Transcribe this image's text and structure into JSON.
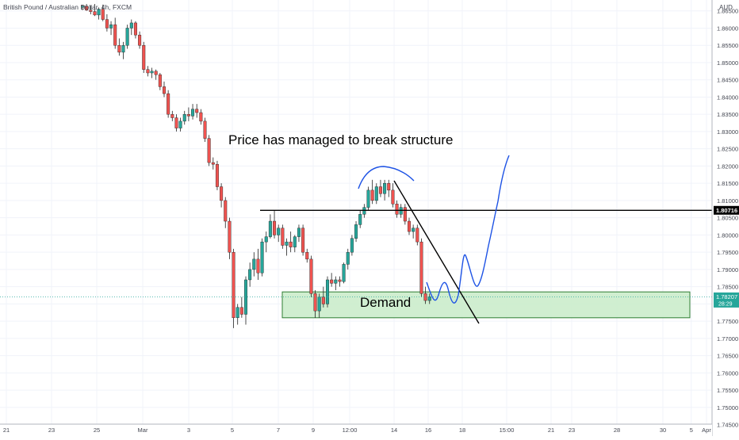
{
  "header": {
    "symbol_title": "British Pound / Australian Dollar, 4h, FXCM"
  },
  "colors": {
    "up": "#26a69a",
    "down": "#ef5350",
    "grid": "#f0f3fa",
    "axis_text": "#434651",
    "drawing_black": "#000000",
    "drawing_blue": "#1e53e5",
    "demand_fill": "#c8ebc8",
    "demand_stroke": "#2e7d32"
  },
  "price_axis": {
    "currency": "AUD",
    "ticks": [
      "1.86500",
      "1.86000",
      "1.85500",
      "1.85000",
      "1.84500",
      "1.84000",
      "1.83500",
      "1.83000",
      "1.82500",
      "1.82000",
      "1.81500",
      "1.81000",
      "1.80500",
      "1.80000",
      "1.79500",
      "1.79000",
      "1.78500",
      "1.78000",
      "1.77500",
      "1.77000",
      "1.76500",
      "1.76000",
      "1.75500",
      "1.75000",
      "1.74500"
    ],
    "level_label": "1.80716",
    "current_price": "1.78207",
    "countdown": "28:29"
  },
  "time_axis": {
    "labels": [
      "21",
      "23",
      "25",
      "Mar",
      "3",
      "5",
      "7",
      "9",
      "12:00",
      "14",
      "16",
      "18",
      "15:00",
      "21",
      "23",
      "28",
      "30",
      "Apr",
      "5"
    ]
  },
  "annotations": {
    "structure_text": "Price has managed to break structure",
    "demand_text": "Demand"
  },
  "chart_data": {
    "type": "candlestick",
    "title": "British Pound / Australian Dollar, 4h, FXCM",
    "y_unit": "AUD",
    "ylim": [
      1.744,
      1.867
    ],
    "grid": true,
    "horizontal_level": 1.80716,
    "last_price": 1.78207,
    "demand_zone": [
      1.776,
      1.7835
    ],
    "candles": [
      {
        "o": 1.866,
        "h": 1.8668,
        "l": 1.8652,
        "c": 1.8664
      },
      {
        "o": 1.8664,
        "h": 1.867,
        "l": 1.865,
        "c": 1.8652
      },
      {
        "o": 1.8652,
        "h": 1.8665,
        "l": 1.864,
        "c": 1.8648
      },
      {
        "o": 1.8648,
        "h": 1.867,
        "l": 1.8635,
        "c": 1.8638
      },
      {
        "o": 1.8638,
        "h": 1.866,
        "l": 1.8625,
        "c": 1.8655
      },
      {
        "o": 1.8655,
        "h": 1.8668,
        "l": 1.862,
        "c": 1.8625
      },
      {
        "o": 1.8625,
        "h": 1.864,
        "l": 1.859,
        "c": 1.86
      },
      {
        "o": 1.86,
        "h": 1.862,
        "l": 1.858,
        "c": 1.861
      },
      {
        "o": 1.861,
        "h": 1.863,
        "l": 1.854,
        "c": 1.855
      },
      {
        "o": 1.855,
        "h": 1.857,
        "l": 1.852,
        "c": 1.853
      },
      {
        "o": 1.853,
        "h": 1.856,
        "l": 1.851,
        "c": 1.855
      },
      {
        "o": 1.855,
        "h": 1.861,
        "l": 1.854,
        "c": 1.86
      },
      {
        "o": 1.86,
        "h": 1.8625,
        "l": 1.858,
        "c": 1.8615
      },
      {
        "o": 1.8615,
        "h": 1.862,
        "l": 1.857,
        "c": 1.858
      },
      {
        "o": 1.858,
        "h": 1.859,
        "l": 1.854,
        "c": 1.855
      },
      {
        "o": 1.855,
        "h": 1.856,
        "l": 1.847,
        "c": 1.848
      },
      {
        "o": 1.848,
        "h": 1.849,
        "l": 1.846,
        "c": 1.847
      },
      {
        "o": 1.847,
        "h": 1.8485,
        "l": 1.8455,
        "c": 1.8475
      },
      {
        "o": 1.8475,
        "h": 1.848,
        "l": 1.845,
        "c": 1.8465
      },
      {
        "o": 1.8465,
        "h": 1.847,
        "l": 1.842,
        "c": 1.843
      },
      {
        "o": 1.843,
        "h": 1.8445,
        "l": 1.84,
        "c": 1.841
      },
      {
        "o": 1.841,
        "h": 1.842,
        "l": 1.834,
        "c": 1.835
      },
      {
        "o": 1.835,
        "h": 1.836,
        "l": 1.833,
        "c": 1.834
      },
      {
        "o": 1.834,
        "h": 1.835,
        "l": 1.83,
        "c": 1.831
      },
      {
        "o": 1.831,
        "h": 1.834,
        "l": 1.83,
        "c": 1.833
      },
      {
        "o": 1.833,
        "h": 1.836,
        "l": 1.832,
        "c": 1.835
      },
      {
        "o": 1.835,
        "h": 1.837,
        "l": 1.833,
        "c": 1.8345
      },
      {
        "o": 1.8345,
        "h": 1.838,
        "l": 1.8335,
        "c": 1.8365
      },
      {
        "o": 1.8365,
        "h": 1.838,
        "l": 1.834,
        "c": 1.8355
      },
      {
        "o": 1.8355,
        "h": 1.8365,
        "l": 1.832,
        "c": 1.833
      },
      {
        "o": 1.833,
        "h": 1.834,
        "l": 1.827,
        "c": 1.828
      },
      {
        "o": 1.828,
        "h": 1.829,
        "l": 1.82,
        "c": 1.821
      },
      {
        "o": 1.821,
        "h": 1.8225,
        "l": 1.819,
        "c": 1.8205
      },
      {
        "o": 1.8205,
        "h": 1.8215,
        "l": 1.813,
        "c": 1.814
      },
      {
        "o": 1.814,
        "h": 1.815,
        "l": 1.808,
        "c": 1.81
      },
      {
        "o": 1.81,
        "h": 1.811,
        "l": 1.802,
        "c": 1.804
      },
      {
        "o": 1.804,
        "h": 1.805,
        "l": 1.793,
        "c": 1.795
      },
      {
        "o": 1.795,
        "h": 1.796,
        "l": 1.773,
        "c": 1.776
      },
      {
        "o": 1.776,
        "h": 1.78,
        "l": 1.774,
        "c": 1.779
      },
      {
        "o": 1.779,
        "h": 1.782,
        "l": 1.776,
        "c": 1.777
      },
      {
        "o": 1.777,
        "h": 1.788,
        "l": 1.774,
        "c": 1.787
      },
      {
        "o": 1.787,
        "h": 1.792,
        "l": 1.785,
        "c": 1.79
      },
      {
        "o": 1.79,
        "h": 1.795,
        "l": 1.788,
        "c": 1.793
      },
      {
        "o": 1.793,
        "h": 1.796,
        "l": 1.787,
        "c": 1.789
      },
      {
        "o": 1.789,
        "h": 1.799,
        "l": 1.788,
        "c": 1.798
      },
      {
        "o": 1.798,
        "h": 1.801,
        "l": 1.795,
        "c": 1.7995
      },
      {
        "o": 1.7995,
        "h": 1.806,
        "l": 1.799,
        "c": 1.804
      },
      {
        "o": 1.804,
        "h": 1.807,
        "l": 1.799,
        "c": 1.8
      },
      {
        "o": 1.8,
        "h": 1.803,
        "l": 1.798,
        "c": 1.802
      },
      {
        "o": 1.802,
        "h": 1.803,
        "l": 1.796,
        "c": 1.797
      },
      {
        "o": 1.797,
        "h": 1.799,
        "l": 1.794,
        "c": 1.798
      },
      {
        "o": 1.798,
        "h": 1.801,
        "l": 1.795,
        "c": 1.7965
      },
      {
        "o": 1.7965,
        "h": 1.8,
        "l": 1.795,
        "c": 1.7995
      },
      {
        "o": 1.7995,
        "h": 1.803,
        "l": 1.798,
        "c": 1.802
      },
      {
        "o": 1.802,
        "h": 1.803,
        "l": 1.794,
        "c": 1.795
      },
      {
        "o": 1.795,
        "h": 1.796,
        "l": 1.792,
        "c": 1.793
      },
      {
        "o": 1.793,
        "h": 1.794,
        "l": 1.782,
        "c": 1.783
      },
      {
        "o": 1.783,
        "h": 1.784,
        "l": 1.776,
        "c": 1.778
      },
      {
        "o": 1.778,
        "h": 1.783,
        "l": 1.776,
        "c": 1.782
      },
      {
        "o": 1.782,
        "h": 1.785,
        "l": 1.779,
        "c": 1.78
      },
      {
        "o": 1.78,
        "h": 1.788,
        "l": 1.779,
        "c": 1.787
      },
      {
        "o": 1.787,
        "h": 1.789,
        "l": 1.785,
        "c": 1.786
      },
      {
        "o": 1.786,
        "h": 1.788,
        "l": 1.784,
        "c": 1.787
      },
      {
        "o": 1.787,
        "h": 1.788,
        "l": 1.785,
        "c": 1.7865
      },
      {
        "o": 1.7865,
        "h": 1.792,
        "l": 1.786,
        "c": 1.7915
      },
      {
        "o": 1.7915,
        "h": 1.796,
        "l": 1.79,
        "c": 1.795
      },
      {
        "o": 1.795,
        "h": 1.8,
        "l": 1.794,
        "c": 1.799
      },
      {
        "o": 1.799,
        "h": 1.804,
        "l": 1.798,
        "c": 1.803
      },
      {
        "o": 1.803,
        "h": 1.807,
        "l": 1.802,
        "c": 1.806
      },
      {
        "o": 1.806,
        "h": 1.809,
        "l": 1.805,
        "c": 1.808
      },
      {
        "o": 1.808,
        "h": 1.814,
        "l": 1.807,
        "c": 1.813
      },
      {
        "o": 1.813,
        "h": 1.816,
        "l": 1.809,
        "c": 1.81
      },
      {
        "o": 1.81,
        "h": 1.815,
        "l": 1.809,
        "c": 1.814
      },
      {
        "o": 1.814,
        "h": 1.816,
        "l": 1.811,
        "c": 1.812
      },
      {
        "o": 1.812,
        "h": 1.816,
        "l": 1.81,
        "c": 1.815
      },
      {
        "o": 1.815,
        "h": 1.816,
        "l": 1.811,
        "c": 1.813
      },
      {
        "o": 1.813,
        "h": 1.815,
        "l": 1.808,
        "c": 1.809
      },
      {
        "o": 1.809,
        "h": 1.81,
        "l": 1.805,
        "c": 1.806
      },
      {
        "o": 1.806,
        "h": 1.809,
        "l": 1.805,
        "c": 1.808
      },
      {
        "o": 1.808,
        "h": 1.809,
        "l": 1.803,
        "c": 1.804
      },
      {
        "o": 1.804,
        "h": 1.805,
        "l": 1.8,
        "c": 1.801
      },
      {
        "o": 1.801,
        "h": 1.803,
        "l": 1.799,
        "c": 1.802
      },
      {
        "o": 1.802,
        "h": 1.803,
        "l": 1.797,
        "c": 1.798
      },
      {
        "o": 1.798,
        "h": 1.799,
        "l": 1.782,
        "c": 1.783
      },
      {
        "o": 1.783,
        "h": 1.785,
        "l": 1.78,
        "c": 1.781
      },
      {
        "o": 1.781,
        "h": 1.783,
        "l": 1.78,
        "c": 1.7821
      }
    ]
  }
}
